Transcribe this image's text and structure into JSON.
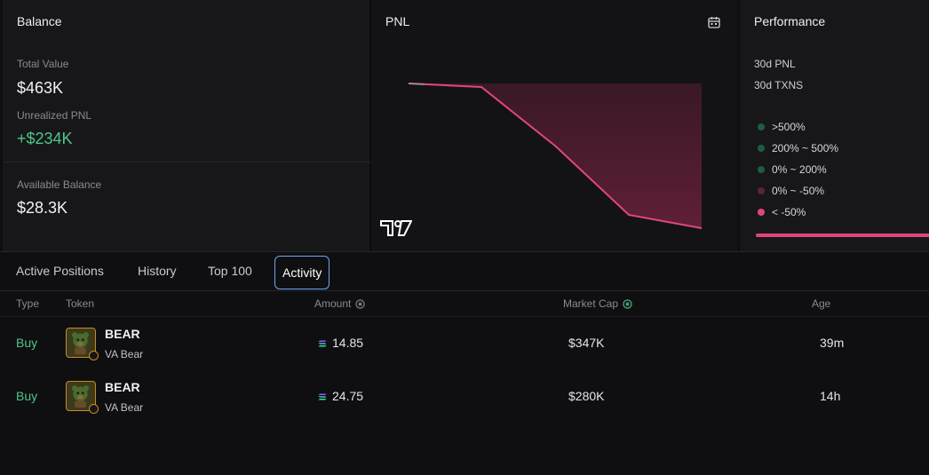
{
  "balance": {
    "title": "Balance",
    "total_value_label": "Total Value",
    "total_value": "$463K",
    "unrealized_pnl_label": "Unrealized PNL",
    "unrealized_pnl": "+$234K",
    "available_balance_label": "Available Balance",
    "available_balance": "$28.3K"
  },
  "pnl": {
    "title": "PNL",
    "icon": "calendar-icon",
    "line_color": "#e0467d"
  },
  "performance": {
    "title": "Performance",
    "pnl_30d_label": "30d PNL",
    "txns_30d_label": "30d TXNS",
    "legend": [
      {
        "label": ">500%",
        "color": "#1f5c3e"
      },
      {
        "label": "200% ~ 500%",
        "color": "#1f5c3e"
      },
      {
        "label": "0% ~ 200%",
        "color": "#1f5c3e"
      },
      {
        "label": "0% ~ -50%",
        "color": "#5a2335"
      },
      {
        "label": "< -50%",
        "color": "#e0467d"
      }
    ]
  },
  "tabs": [
    {
      "label": "Active Positions"
    },
    {
      "label": "History"
    },
    {
      "label": "Top 100"
    },
    {
      "label": "Activity",
      "active": true
    }
  ],
  "table": {
    "headers": {
      "type": "Type",
      "token": "Token",
      "amount": "Amount",
      "market_cap": "Market Cap",
      "age": "Age"
    },
    "rows": [
      {
        "type": "Buy",
        "symbol": "BEAR",
        "name": "VA Bear",
        "amount": "14.85",
        "market_cap": "$347K",
        "age": "39m"
      },
      {
        "type": "Buy",
        "symbol": "BEAR",
        "name": "VA Bear",
        "amount": "24.75",
        "market_cap": "$280K",
        "age": "14h"
      }
    ]
  }
}
